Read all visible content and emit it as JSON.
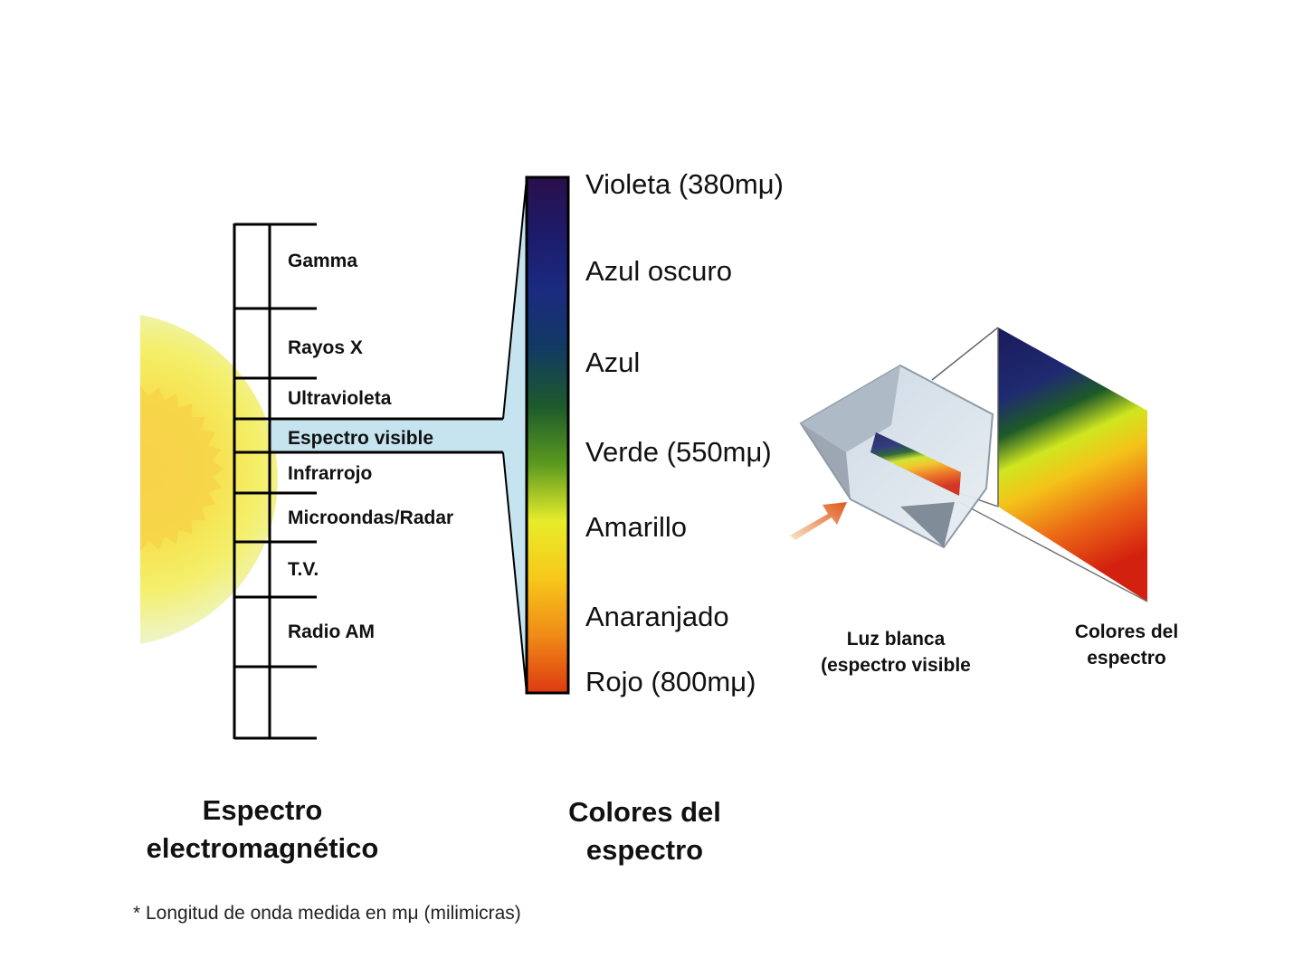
{
  "em_spectrum": {
    "bands": [
      "Gamma",
      "Rayos X",
      "Ultravioleta",
      "Espectro visible",
      "Infrarrojo",
      "Microondas/Radar",
      "T.V.",
      "Radio AM"
    ],
    "caption_line1": "Espectro",
    "caption_line2": "electromagnético"
  },
  "visible_colors": {
    "labels": [
      "Violeta  (380mμ)",
      "Azul  oscuro",
      "Azul",
      "Verde  (550mμ)",
      "Amarillo",
      "Anaranjado",
      "Rojo  (800mμ)"
    ],
    "gradient": [
      "#2a0f4a",
      "#1d1b6b",
      "#1a2b80",
      "#123a62",
      "#1d5a2c",
      "#5b9a1f",
      "#e8ec2a",
      "#f7c81a",
      "#f08a18",
      "#de3a10"
    ],
    "caption_line1": "Colores del",
    "caption_line2": "espectro"
  },
  "prism": {
    "light_label_line1": "Luz blanca",
    "light_label_line2": "(espectro visible",
    "spectrum_label_line1": "Colores del",
    "spectrum_label_line2": "espectro"
  },
  "footnote": "* Longitud de onda medida en mμ (milimicras)"
}
